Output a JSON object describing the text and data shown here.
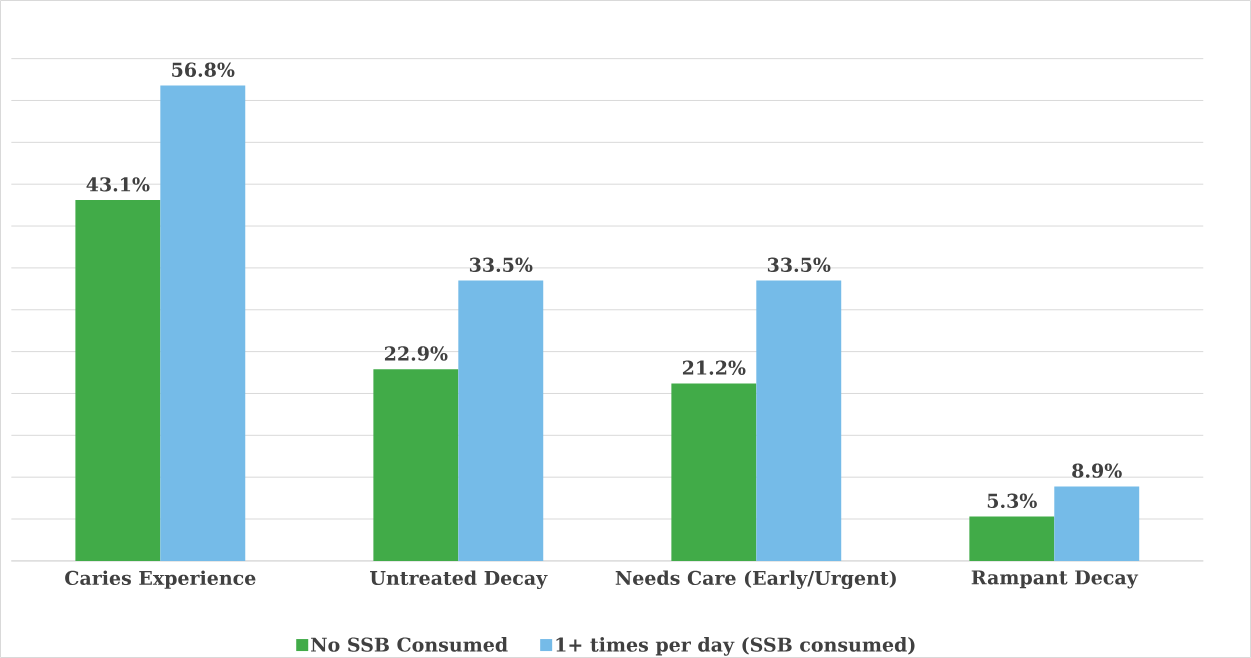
{
  "chart_data": {
    "type": "bar",
    "categories": [
      "Caries Experience",
      "Untreated Decay",
      "Needs Care (Early/Urgent)",
      "Rampant Decay"
    ],
    "series": [
      {
        "name": "No SSB Consumed",
        "color": "#41ab48",
        "values": [
          43.1,
          22.9,
          21.2,
          5.3
        ],
        "value_labels": [
          "43.1%",
          "22.9%",
          "21.2%",
          "5.3%"
        ]
      },
      {
        "name": "1+ times per day (SSB consumed)",
        "color": "#75bbe8",
        "values": [
          56.8,
          33.5,
          33.5,
          8.9
        ],
        "value_labels": [
          "56.8%",
          "33.5%",
          "33.5%",
          "8.9%"
        ]
      }
    ],
    "tick_labels": "x",
    "grid": "y",
    "legend": "bottom"
  }
}
